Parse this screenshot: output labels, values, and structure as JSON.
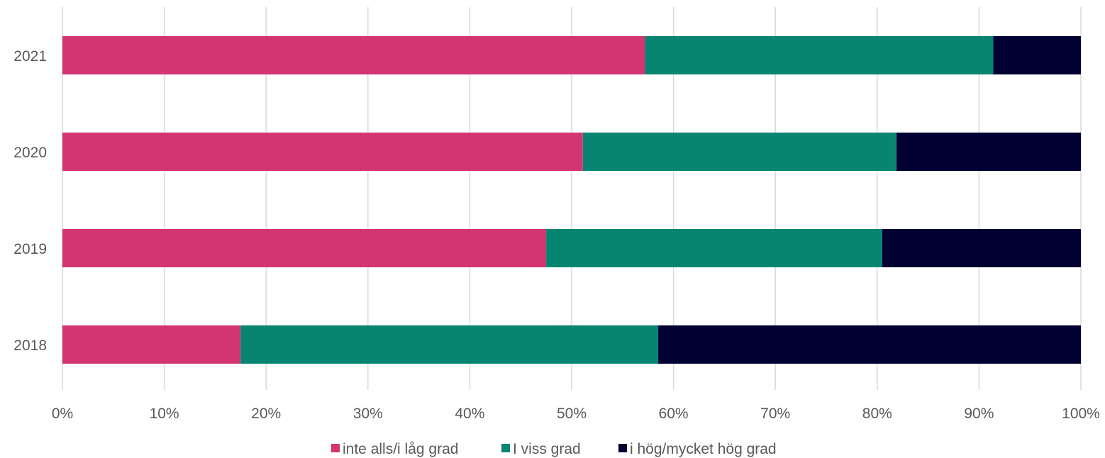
{
  "chart_data": {
    "type": "bar",
    "orientation": "horizontal",
    "stacked": true,
    "percent_stacked": true,
    "categories": [
      "2021",
      "2020",
      "2019",
      "2018"
    ],
    "series": [
      {
        "name": "inte alls/i låg grad",
        "color": "#d33572",
        "values": [
          57.2,
          51.1,
          47.5,
          17.5
        ]
      },
      {
        "name": "I viss grad",
        "color": "#078571",
        "values": [
          34.2,
          30.8,
          33.0,
          41.0
        ]
      },
      {
        "name": "i hög/mycket hög grad",
        "color": "#000033",
        "values": [
          8.6,
          18.1,
          19.5,
          41.5
        ]
      }
    ],
    "x_ticks": [
      "0%",
      "10%",
      "20%",
      "30%",
      "40%",
      "50%",
      "60%",
      "70%",
      "80%",
      "90%",
      "100%"
    ],
    "xlim": [
      0,
      100
    ],
    "grid": true,
    "legend_position": "bottom",
    "title": "",
    "xlabel": "",
    "ylabel": ""
  }
}
